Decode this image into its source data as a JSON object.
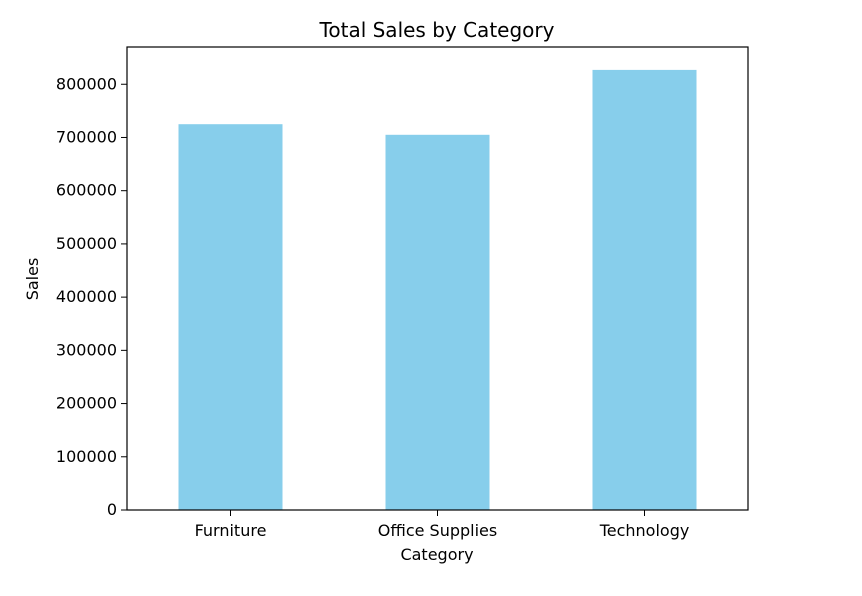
{
  "chart_data": {
    "type": "bar",
    "title": "Total Sales by Category",
    "xlabel": "Category",
    "ylabel": "Sales",
    "categories": [
      "Furniture",
      "Office Supplies",
      "Technology"
    ],
    "values": [
      725000,
      705000,
      827000
    ],
    "ylim": [
      0,
      870000
    ],
    "yticks": [
      0,
      100000,
      200000,
      300000,
      400000,
      500000,
      600000,
      700000,
      800000
    ],
    "ytick_labels": [
      "0",
      "100000",
      "200000",
      "300000",
      "400000",
      "500000",
      "600000",
      "700000",
      "800000"
    ],
    "grid": false,
    "bar_color": "#87ceeb"
  }
}
